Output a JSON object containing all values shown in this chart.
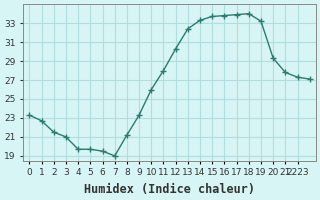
{
  "x": [
    0,
    1,
    2,
    3,
    4,
    5,
    6,
    7,
    8,
    9,
    10,
    11,
    12,
    13,
    14,
    15,
    16,
    17,
    18,
    19,
    20,
    21,
    22,
    23
  ],
  "y": [
    23.3,
    22.7,
    21.5,
    21.0,
    19.7,
    19.7,
    19.5,
    19.0,
    21.2,
    23.3,
    26.0,
    28.0,
    30.3,
    32.4,
    33.3,
    33.7,
    33.8,
    33.9,
    34.0,
    33.2,
    29.3,
    27.8,
    27.3,
    27.1
  ],
  "xlabel": "Humidex (Indice chaleur)",
  "bg_color": "#d8f5f5",
  "grid_color": "#b0dede",
  "line_color": "#2d7a6e",
  "marker_color": "#2d7a6e",
  "ylim": [
    18.5,
    35.0
  ],
  "xlim": [
    -0.5,
    23.5
  ],
  "yticks": [
    19,
    21,
    23,
    25,
    27,
    29,
    31,
    33
  ],
  "xtick_positions": [
    0,
    1,
    2,
    3,
    4,
    5,
    6,
    7,
    8,
    9,
    10,
    11,
    12,
    13,
    14,
    15,
    16,
    17,
    18,
    19,
    20,
    21,
    22
  ],
  "xtick_labels": [
    "0",
    "1",
    "2",
    "3",
    "4",
    "5",
    "6",
    "7",
    "8",
    "9",
    "10",
    "11",
    "12",
    "13",
    "14",
    "15",
    "16",
    "17",
    "18",
    "19",
    "20",
    "21",
    "2223"
  ],
  "font_color": "#333333",
  "xlabel_fontsize": 8.5,
  "tick_fontsize": 6.5
}
